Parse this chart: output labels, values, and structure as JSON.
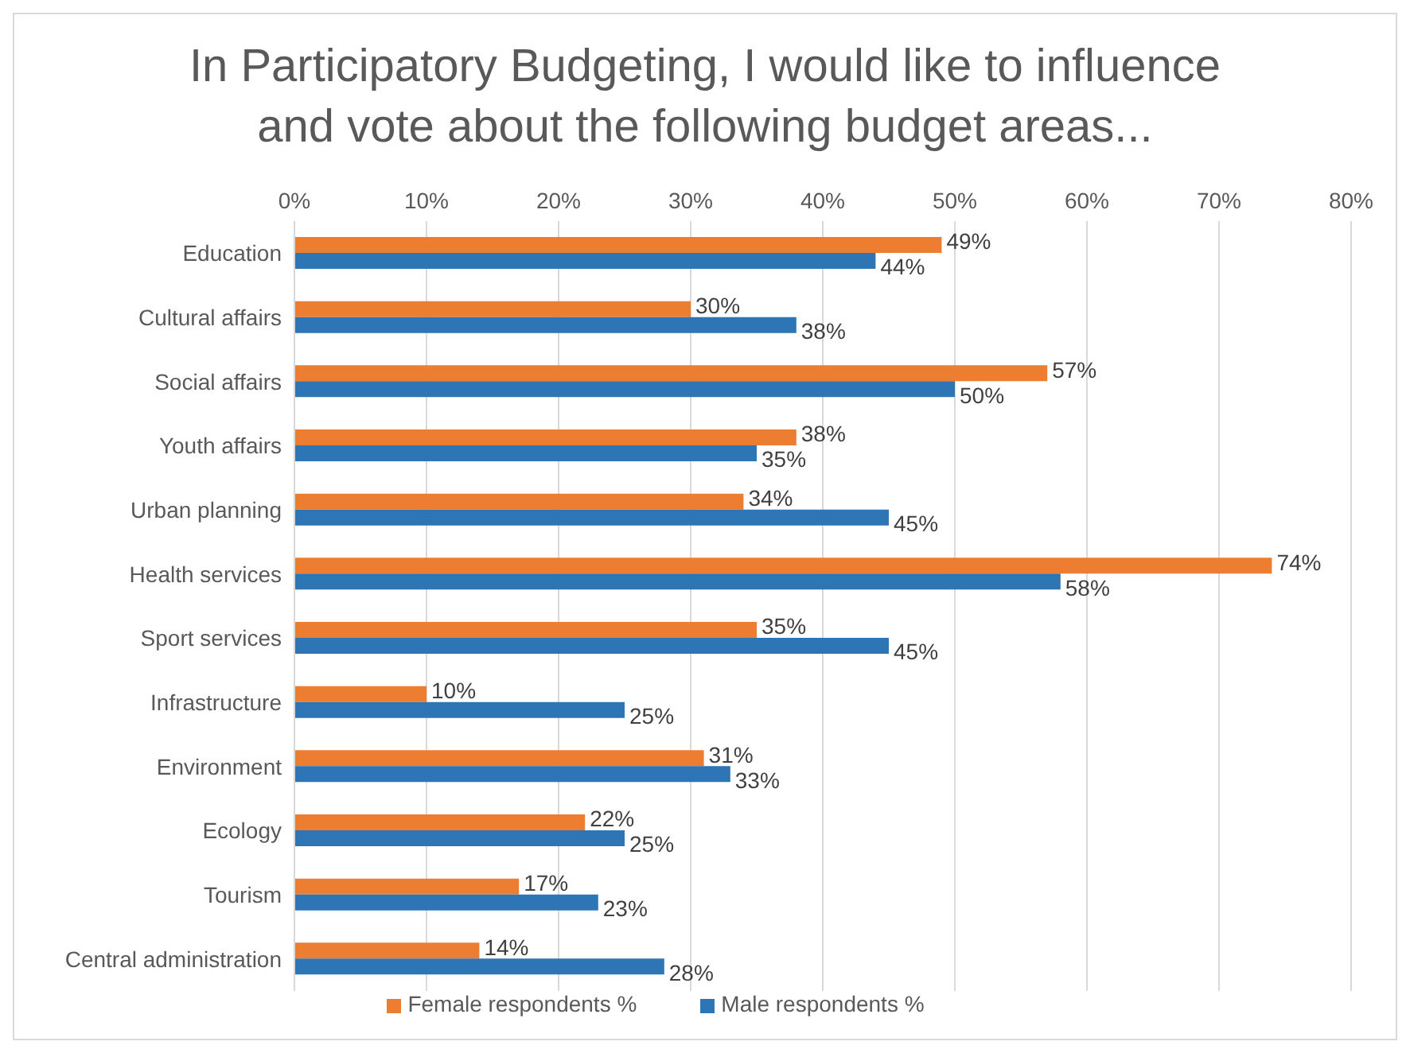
{
  "chart_data": {
    "type": "bar",
    "orientation": "horizontal",
    "title": "In Participatory Budgeting, I would like to influence and vote about the following budget areas...",
    "categories": [
      "Education",
      "Cultural affairs",
      "Social affairs",
      "Youth affairs",
      "Urban planning",
      "Health services",
      "Sport services",
      "Infrastructure",
      "Environment",
      "Ecology",
      "Tourism",
      "Central administration"
    ],
    "series": [
      {
        "name": "Female respondents %",
        "color": "#ed7d31",
        "values": [
          49,
          30,
          57,
          38,
          34,
          74,
          35,
          10,
          31,
          22,
          17,
          14
        ],
        "value_labels": [
          "49%",
          "30%",
          "57%",
          "38%",
          "34%",
          "74%",
          "35%",
          "10%",
          "31%",
          "22%",
          "17%",
          "14%"
        ]
      },
      {
        "name": "Male respondents %",
        "color": "#2e75b6",
        "values": [
          44,
          38,
          50,
          35,
          45,
          58,
          45,
          25,
          33,
          25,
          23,
          28
        ],
        "value_labels": [
          "44%",
          "38%",
          "50%",
          "35%",
          "45%",
          "58%",
          "45%",
          "25%",
          "33%",
          "25%",
          "23%",
          "28%"
        ]
      }
    ],
    "xlim": [
      0,
      80
    ],
    "xticks": [
      {
        "value": 0,
        "label": "0%"
      },
      {
        "value": 10,
        "label": "10%"
      },
      {
        "value": 20,
        "label": "20%"
      },
      {
        "value": 30,
        "label": "30%"
      },
      {
        "value": 40,
        "label": "40%"
      },
      {
        "value": 50,
        "label": "50%"
      },
      {
        "value": 60,
        "label": "60%"
      },
      {
        "value": 70,
        "label": "70%"
      },
      {
        "value": 80,
        "label": "80%"
      }
    ],
    "grid": "x",
    "legend": "bottom"
  }
}
